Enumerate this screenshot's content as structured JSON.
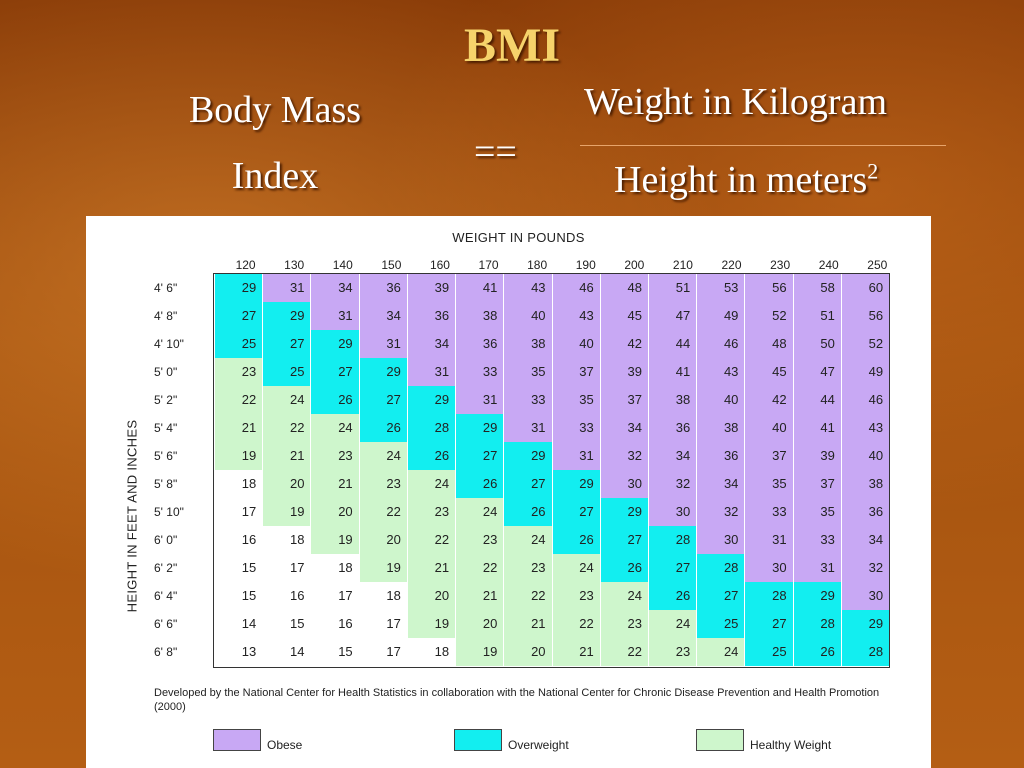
{
  "slide": {
    "title": "BMI",
    "label_line1": "Body Mass",
    "label_line2": "Index",
    "equals": "==",
    "numerator": "Weight in Kilogram",
    "denominator": "Height in meters",
    "exponent": "2"
  },
  "colors": {
    "obese": "#c8a8f4",
    "overweight": "#12eef0",
    "healthy": "#cef6cc"
  },
  "chart_data": {
    "type": "table",
    "title": "WEIGHT IN POUNDS",
    "row_axis_label": "HEIGHT IN FEET AND INCHES",
    "columns": [
      "120",
      "130",
      "140",
      "150",
      "160",
      "170",
      "180",
      "190",
      "200",
      "210",
      "220",
      "230",
      "240",
      "250"
    ],
    "rows": [
      "4' 6\"",
      "4' 8\"",
      "4' 10\"",
      "5' 0\"",
      "5' 2\"",
      "5' 4\"",
      "5' 6\"",
      "5' 8\"",
      "5' 10\"",
      "6' 0\"",
      "6' 2\"",
      "6' 4\"",
      "6' 6\"",
      "6' 8\""
    ],
    "values": [
      [
        29,
        31,
        34,
        36,
        39,
        41,
        43,
        46,
        48,
        51,
        53,
        56,
        58,
        60
      ],
      [
        27,
        29,
        31,
        34,
        36,
        38,
        40,
        43,
        45,
        47,
        49,
        52,
        51,
        56
      ],
      [
        25,
        27,
        29,
        31,
        34,
        36,
        38,
        40,
        42,
        44,
        46,
        48,
        50,
        52
      ],
      [
        23,
        25,
        27,
        29,
        31,
        33,
        35,
        37,
        39,
        41,
        43,
        45,
        47,
        49
      ],
      [
        22,
        24,
        26,
        27,
        29,
        31,
        33,
        35,
        37,
        38,
        40,
        42,
        44,
        46
      ],
      [
        21,
        22,
        24,
        26,
        28,
        29,
        31,
        33,
        34,
        36,
        38,
        40,
        41,
        43
      ],
      [
        19,
        21,
        23,
        24,
        26,
        27,
        29,
        31,
        32,
        34,
        36,
        37,
        39,
        40
      ],
      [
        18,
        20,
        21,
        23,
        24,
        26,
        27,
        29,
        30,
        32,
        34,
        35,
        37,
        38
      ],
      [
        17,
        19,
        20,
        22,
        23,
        24,
        26,
        27,
        29,
        30,
        32,
        33,
        35,
        36
      ],
      [
        16,
        18,
        19,
        20,
        22,
        23,
        24,
        26,
        27,
        28,
        30,
        31,
        33,
        34
      ],
      [
        15,
        17,
        18,
        19,
        21,
        22,
        23,
        24,
        26,
        27,
        28,
        30,
        31,
        32
      ],
      [
        15,
        16,
        17,
        18,
        20,
        21,
        22,
        23,
        24,
        26,
        27,
        28,
        29,
        30
      ],
      [
        14,
        15,
        16,
        17,
        19,
        20,
        21,
        22,
        23,
        24,
        25,
        27,
        28,
        29
      ],
      [
        13,
        14,
        15,
        17,
        18,
        19,
        20,
        21,
        22,
        23,
        24,
        25,
        26,
        28
      ]
    ],
    "categories_by_cell": [
      [
        "ow",
        "ob",
        "ob",
        "ob",
        "ob",
        "ob",
        "ob",
        "ob",
        "ob",
        "ob",
        "ob",
        "ob",
        "ob",
        "ob"
      ],
      [
        "ow",
        "ow",
        "ob",
        "ob",
        "ob",
        "ob",
        "ob",
        "ob",
        "ob",
        "ob",
        "ob",
        "ob",
        "ob",
        "ob"
      ],
      [
        "ow",
        "ow",
        "ow",
        "ob",
        "ob",
        "ob",
        "ob",
        "ob",
        "ob",
        "ob",
        "ob",
        "ob",
        "ob",
        "ob"
      ],
      [
        "h",
        "ow",
        "ow",
        "ow",
        "ob",
        "ob",
        "ob",
        "ob",
        "ob",
        "ob",
        "ob",
        "ob",
        "ob",
        "ob"
      ],
      [
        "h",
        "h",
        "ow",
        "ow",
        "ow",
        "ob",
        "ob",
        "ob",
        "ob",
        "ob",
        "ob",
        "ob",
        "ob",
        "ob"
      ],
      [
        "h",
        "h",
        "h",
        "ow",
        "ow",
        "ow",
        "ob",
        "ob",
        "ob",
        "ob",
        "ob",
        "ob",
        "ob",
        "ob"
      ],
      [
        "h",
        "h",
        "h",
        "h",
        "ow",
        "ow",
        "ow",
        "ob",
        "ob",
        "ob",
        "ob",
        "ob",
        "ob",
        "ob"
      ],
      [
        "n",
        "h",
        "h",
        "h",
        "h",
        "ow",
        "ow",
        "ow",
        "ob",
        "ob",
        "ob",
        "ob",
        "ob",
        "ob"
      ],
      [
        "n",
        "h",
        "h",
        "h",
        "h",
        "h",
        "ow",
        "ow",
        "ow",
        "ob",
        "ob",
        "ob",
        "ob",
        "ob"
      ],
      [
        "n",
        "n",
        "h",
        "h",
        "h",
        "h",
        "h",
        "ow",
        "ow",
        "ow",
        "ob",
        "ob",
        "ob",
        "ob"
      ],
      [
        "n",
        "n",
        "n",
        "h",
        "h",
        "h",
        "h",
        "h",
        "ow",
        "ow",
        "ow",
        "ob",
        "ob",
        "ob"
      ],
      [
        "n",
        "n",
        "n",
        "n",
        "h",
        "h",
        "h",
        "h",
        "h",
        "ow",
        "ow",
        "ow",
        "ow",
        "ob"
      ],
      [
        "n",
        "n",
        "n",
        "n",
        "h",
        "h",
        "h",
        "h",
        "h",
        "h",
        "ow",
        "ow",
        "ow",
        "ow"
      ],
      [
        "n",
        "n",
        "n",
        "n",
        "n",
        "h",
        "h",
        "h",
        "h",
        "h",
        "h",
        "ow",
        "ow",
        "ow"
      ]
    ],
    "footnote": "Developed by the National Center for Health Statistics in collaboration with the National Center for Chronic Disease Prevention and Health Promotion (2000)",
    "legend": [
      {
        "key": "ob",
        "label": "Obese"
      },
      {
        "key": "ow",
        "label": "Overweight"
      },
      {
        "key": "h",
        "label": "Healthy Weight"
      }
    ]
  }
}
